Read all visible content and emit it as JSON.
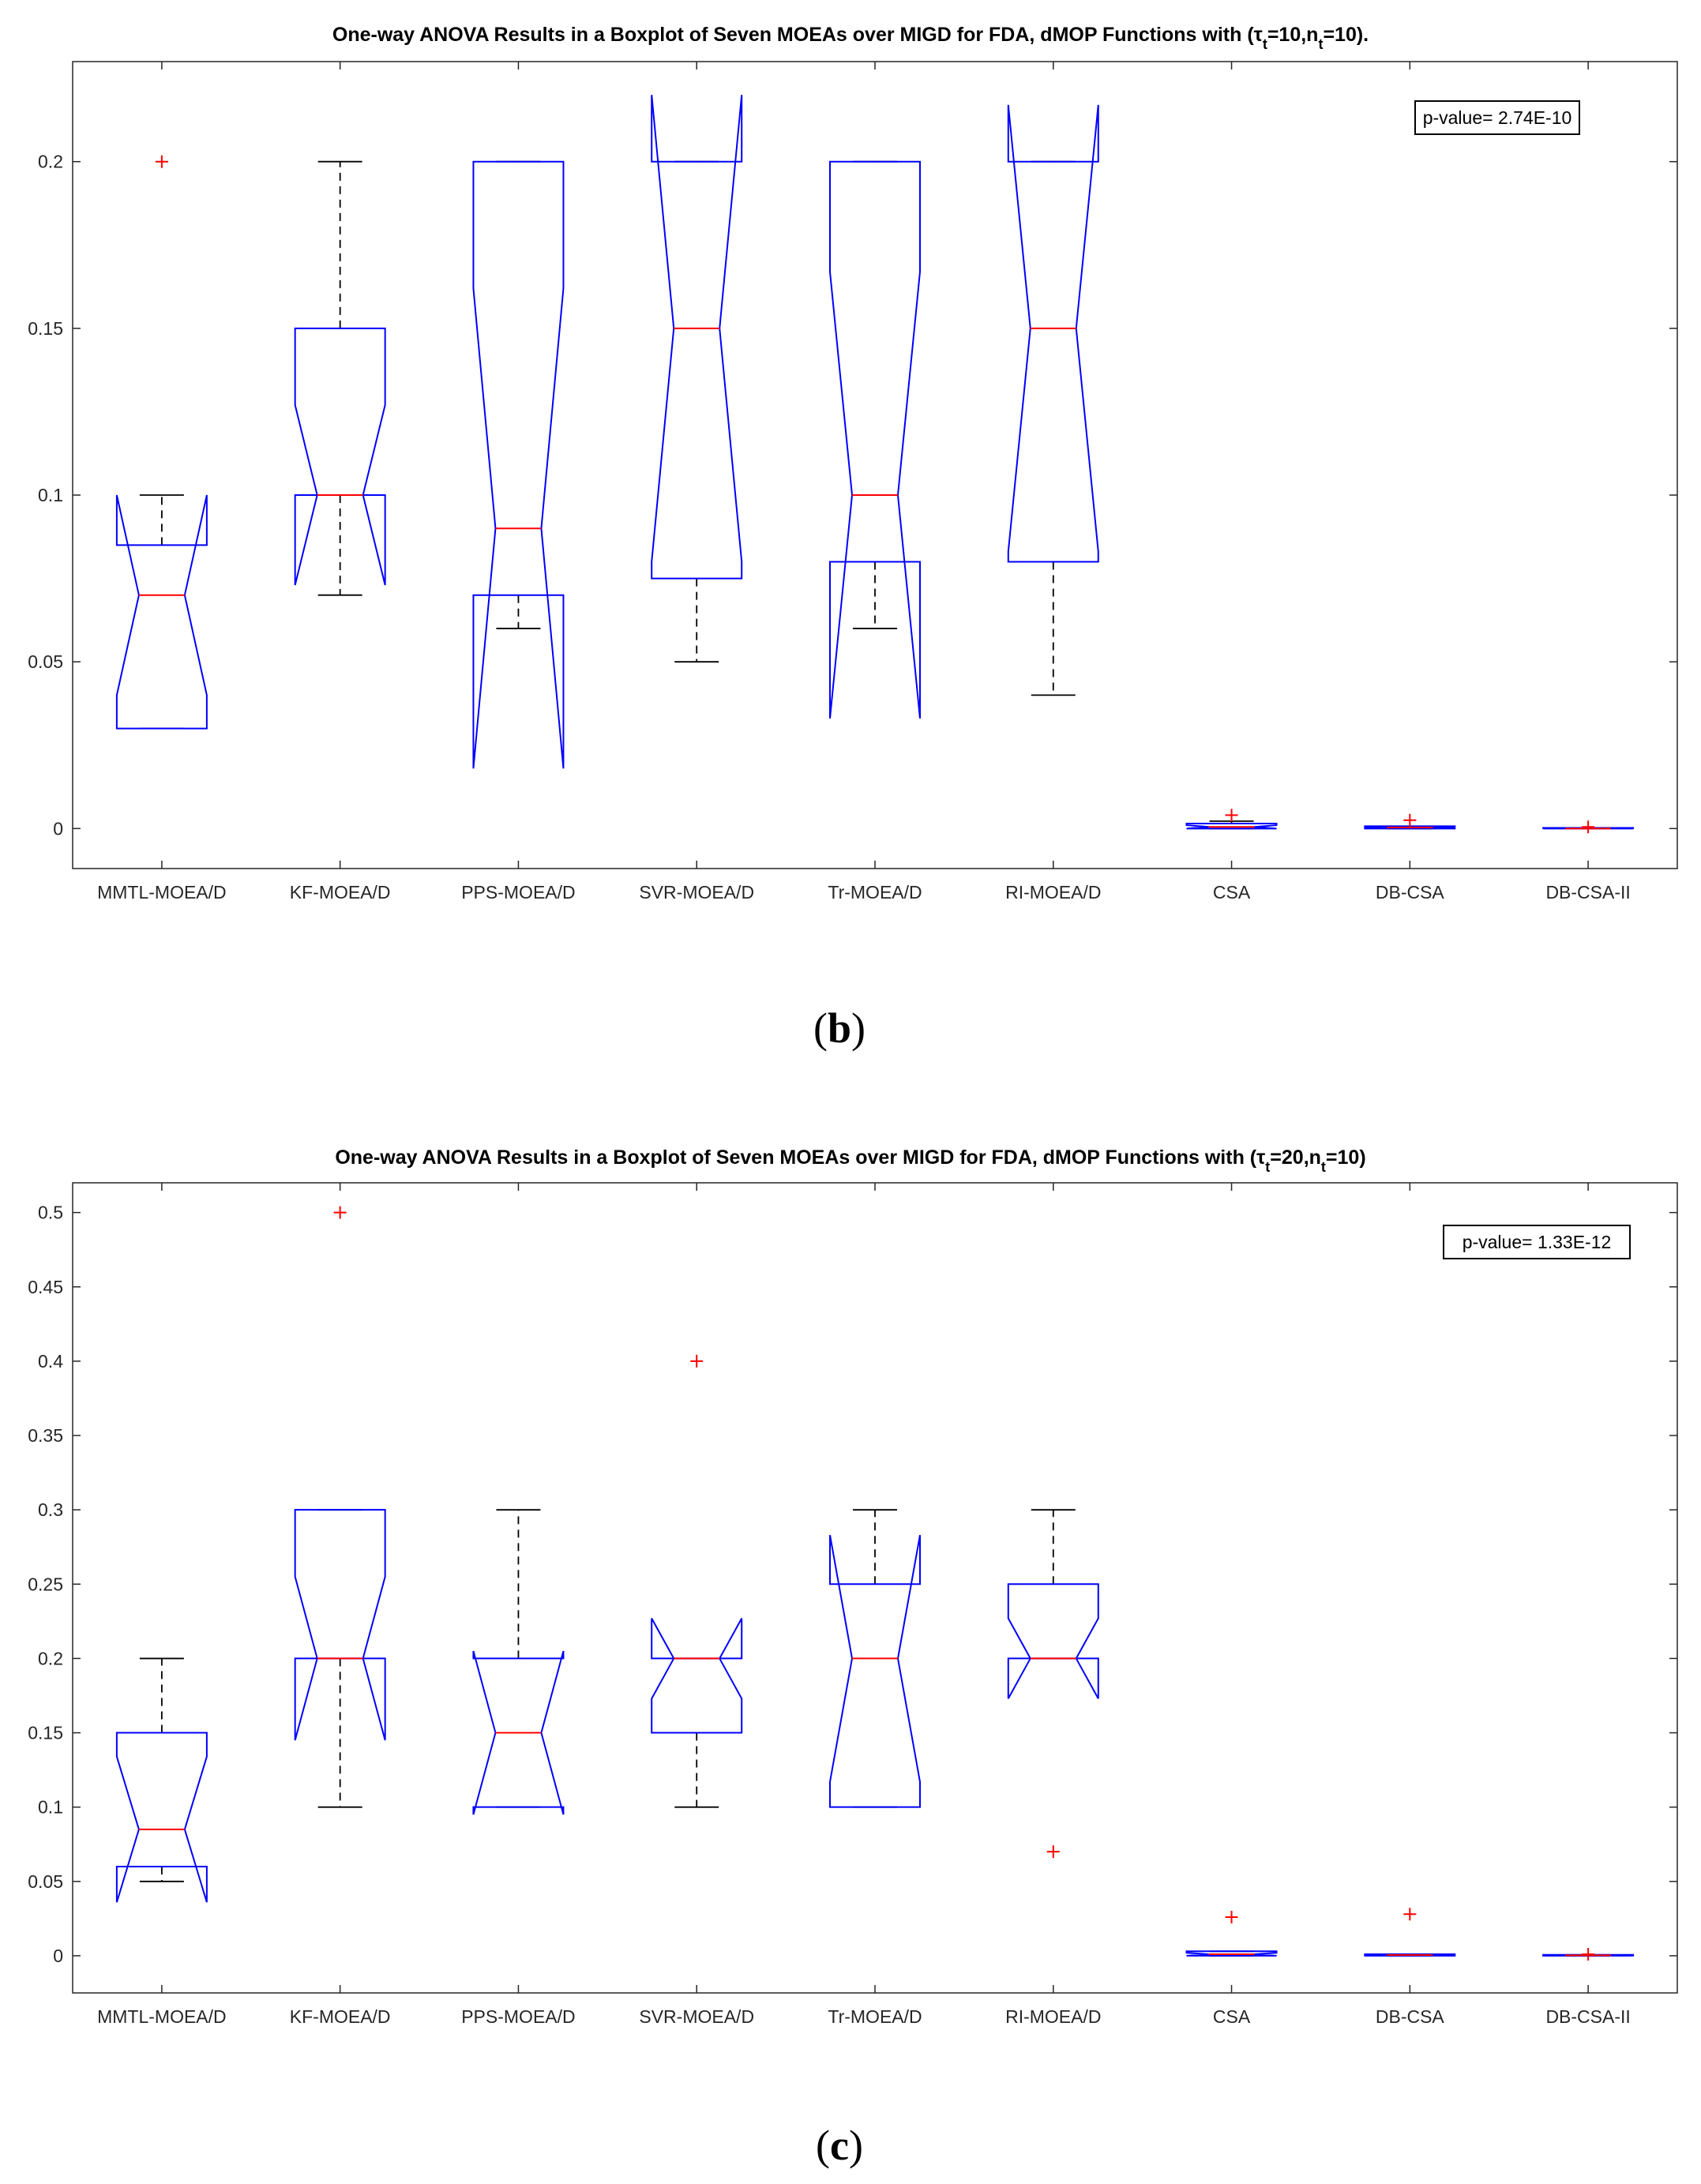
{
  "chart_data": [
    {
      "type": "boxplot",
      "title": "One-way ANOVA Results in a Boxplot of Seven MOEAs over MIGD for FDA, dMOP Functions with (τ",
      "title_parts": [
        "t",
        "=10,n",
        "t",
        "=10)."
      ],
      "ylim": [
        -0.012,
        0.23
      ],
      "yticks": [
        0,
        0.05,
        0.1,
        0.15,
        0.2
      ],
      "ytick_labels": [
        "0",
        "0.05",
        "0.1",
        "0.15",
        "0.2"
      ],
      "grid": false,
      "annotation": "p-value= 2.74E-10",
      "colors": {
        "box": "#0000ff",
        "median": "#ff0000",
        "whisker": "#000000",
        "outlier": "#ff0000"
      },
      "categories": [
        "MMTL-MOEA/D",
        "KF-MOEA/D",
        "PPS-MOEA/D",
        "SVR-MOEA/D",
        "Tr-MOEA/D",
        "RI-MOEA/D",
        "CSA",
        "DB-CSA",
        "DB-CSA-II"
      ],
      "boxes": [
        {
          "q1": 0.03,
          "median": 0.07,
          "q3": 0.085,
          "notch_lo": 0.04,
          "notch_hi": 0.1,
          "whisker_lo": 0.03,
          "whisker_hi": 0.1,
          "outliers": [
            0.2
          ]
        },
        {
          "q1": 0.1,
          "median": 0.1,
          "q3": 0.15,
          "notch_lo": 0.073,
          "notch_hi": 0.127,
          "whisker_lo": 0.07,
          "whisker_hi": 0.2,
          "outliers": []
        },
        {
          "q1": 0.07,
          "median": 0.09,
          "q3": 0.2,
          "notch_lo": 0.018,
          "notch_hi": 0.162,
          "whisker_lo": 0.06,
          "whisker_hi": 0.2,
          "outliers": []
        },
        {
          "q1": 0.075,
          "median": 0.15,
          "q3": 0.2,
          "notch_lo": 0.08,
          "notch_hi": 0.22,
          "whisker_lo": 0.05,
          "whisker_hi": 0.2,
          "outliers": []
        },
        {
          "q1": 0.08,
          "median": 0.1,
          "q3": 0.2,
          "notch_lo": 0.033,
          "notch_hi": 0.167,
          "whisker_lo": 0.06,
          "whisker_hi": 0.2,
          "outliers": []
        },
        {
          "q1": 0.08,
          "median": 0.15,
          "q3": 0.2,
          "notch_lo": 0.083,
          "notch_hi": 0.217,
          "whisker_lo": 0.04,
          "whisker_hi": 0.2,
          "outliers": []
        },
        {
          "q1": 0.0,
          "median": 0.0005,
          "q3": 0.0015,
          "notch_lo": 0.0,
          "notch_hi": 0.001,
          "whisker_lo": 0.0,
          "whisker_hi": 0.0022,
          "outliers": [
            0.004
          ]
        },
        {
          "q1": 0.0,
          "median": 0.0003,
          "q3": 0.0007,
          "notch_lo": 0.0001,
          "notch_hi": 0.0005,
          "whisker_lo": 0.0,
          "whisker_hi": 0.0007,
          "outliers": [
            0.0025
          ]
        },
        {
          "q1": 0.0,
          "median": 0.0,
          "q3": 0.0002,
          "notch_lo": 0.0,
          "notch_hi": 0.0001,
          "whisker_lo": 0.0,
          "whisker_hi": 0.0002,
          "outliers": [
            0.0005
          ]
        }
      ]
    },
    {
      "type": "boxplot",
      "title": "One-way ANOVA Results in a Boxplot of Seven MOEAs over MIGD for FDA, dMOP Functions with (τ",
      "title_parts": [
        "t",
        "=20,n",
        "t",
        "=10)"
      ],
      "ylim": [
        -0.025,
        0.52
      ],
      "yticks": [
        0,
        0.05,
        0.1,
        0.15,
        0.2,
        0.25,
        0.3,
        0.35,
        0.4,
        0.45,
        0.5
      ],
      "ytick_labels": [
        "0",
        "0.05",
        "0.1",
        "0.15",
        "0.2",
        "0.25",
        "0.3",
        "0.35",
        "0.4",
        "0.45",
        "0.5"
      ],
      "grid": false,
      "annotation": "p-value= 1.33E-12",
      "colors": {
        "box": "#0000ff",
        "median": "#ff0000",
        "whisker": "#000000",
        "outlier": "#ff0000"
      },
      "categories": [
        "MMTL-MOEA/D",
        "KF-MOEA/D",
        "PPS-MOEA/D",
        "SVR-MOEA/D",
        "Tr-MOEA/D",
        "RI-MOEA/D",
        "CSA",
        "DB-CSA",
        "DB-CSA-II"
      ],
      "boxes": [
        {
          "q1": 0.06,
          "median": 0.085,
          "q3": 0.15,
          "notch_lo": 0.036,
          "notch_hi": 0.134,
          "whisker_lo": 0.05,
          "whisker_hi": 0.2,
          "outliers": []
        },
        {
          "q1": 0.2,
          "median": 0.2,
          "q3": 0.3,
          "notch_lo": 0.145,
          "notch_hi": 0.255,
          "whisker_lo": 0.1,
          "whisker_hi": 0.3,
          "outliers": [
            0.5
          ]
        },
        {
          "q1": 0.1,
          "median": 0.15,
          "q3": 0.2,
          "notch_lo": 0.095,
          "notch_hi": 0.205,
          "whisker_lo": 0.1,
          "whisker_hi": 0.3,
          "outliers": []
        },
        {
          "q1": 0.15,
          "median": 0.2,
          "q3": 0.2,
          "notch_lo": 0.173,
          "notch_hi": 0.227,
          "whisker_lo": 0.1,
          "whisker_hi": 0.2,
          "outliers": [
            0.4
          ]
        },
        {
          "q1": 0.1,
          "median": 0.2,
          "q3": 0.25,
          "notch_lo": 0.117,
          "notch_hi": 0.283,
          "whisker_lo": 0.1,
          "whisker_hi": 0.3,
          "outliers": []
        },
        {
          "q1": 0.2,
          "median": 0.2,
          "q3": 0.25,
          "notch_lo": 0.173,
          "notch_hi": 0.227,
          "whisker_lo": 0.2,
          "whisker_hi": 0.3,
          "outliers": [
            0.07
          ]
        },
        {
          "q1": 0.0,
          "median": 0.001,
          "q3": 0.003,
          "notch_lo": 0.0,
          "notch_hi": 0.002,
          "whisker_lo": 0.0,
          "whisker_hi": 0.003,
          "outliers": [
            0.026
          ]
        },
        {
          "q1": 0.0,
          "median": 0.0005,
          "q3": 0.001,
          "notch_lo": 0.0002,
          "notch_hi": 0.0008,
          "whisker_lo": 0.0,
          "whisker_hi": 0.001,
          "outliers": [
            0.028
          ]
        },
        {
          "q1": 0.0,
          "median": 0.0003,
          "q3": 0.0006,
          "notch_lo": 0.0001,
          "notch_hi": 0.0005,
          "whisker_lo": 0.0,
          "whisker_hi": 0.0006,
          "outliers": [
            0.001
          ]
        }
      ]
    }
  ],
  "captions": [
    "b",
    "c"
  ]
}
